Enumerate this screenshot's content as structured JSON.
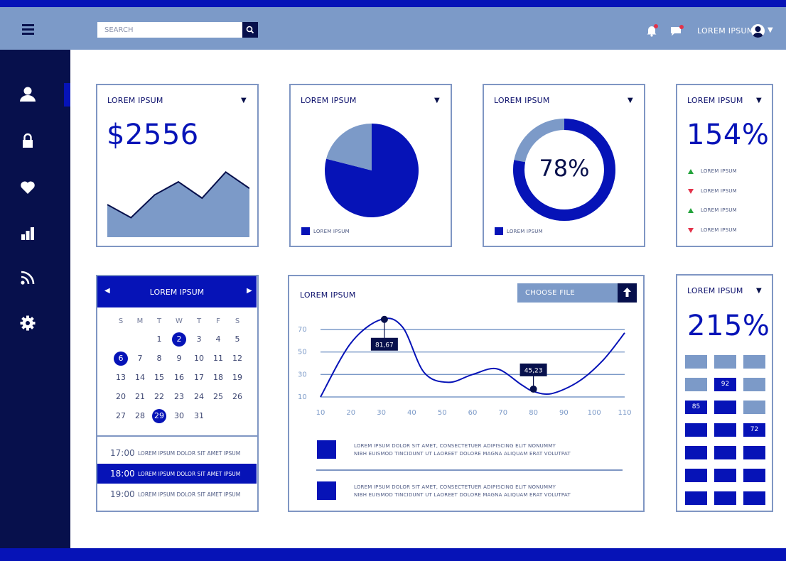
{
  "header": {
    "search_placeholder": "SEARCH",
    "user_name": "LOREM IPSUM"
  },
  "colors": {
    "primary": "#0613b7",
    "light": "#7c9ac8",
    "dark": "#07104c",
    "up": "#23a33b",
    "down": "#e3324a"
  },
  "sidebar": {
    "items": [
      "user-icon",
      "lock-icon",
      "heart-icon",
      "bar-chart-icon",
      "rss-icon",
      "gear-icon"
    ]
  },
  "card_revenue": {
    "title": "LOREM IPSUM",
    "value": "$2556",
    "chart_data": {
      "type": "area",
      "values": [
        10,
        6,
        13,
        17,
        12,
        20,
        15
      ]
    }
  },
  "card_pie": {
    "title": "LOREM IPSUM",
    "legend": "LOREM IPSUM",
    "chart_data": {
      "type": "pie",
      "values": [
        0.79,
        0.21
      ]
    }
  },
  "card_donut": {
    "title": "LOREM IPSUM",
    "value": "78%",
    "legend": "LOREM IPSUM",
    "chart_data": {
      "type": "pie",
      "values": [
        0.78,
        0.22
      ]
    }
  },
  "card_percent": {
    "title": "LOREM IPSUM",
    "value": "154%",
    "items": [
      {
        "direction": "up",
        "label": "LOREM IPSUM"
      },
      {
        "direction": "down",
        "label": "LOREM IPSUM"
      },
      {
        "direction": "up",
        "label": "LOREM IPSUM"
      },
      {
        "direction": "down",
        "label": "LOREM IPSUM"
      }
    ]
  },
  "calendar": {
    "title": "LOREM IPSUM",
    "prev": "◀",
    "next": "▶",
    "weekdays": [
      "S",
      "M",
      "T",
      "W",
      "T",
      "F",
      "S"
    ],
    "weeks": [
      [
        "",
        "",
        "1",
        "2",
        "3",
        "4",
        "5"
      ],
      [
        "6",
        "7",
        "8",
        "9",
        "10",
        "11",
        "12"
      ],
      [
        "13",
        "14",
        "15",
        "16",
        "17",
        "18",
        "19"
      ],
      [
        "20",
        "21",
        "22",
        "23",
        "24",
        "25",
        "26"
      ],
      [
        "27",
        "28",
        "29",
        "30",
        "31",
        "",
        ""
      ]
    ],
    "selected": [
      "2",
      "6",
      "29"
    ],
    "events": [
      {
        "time": "17:00",
        "text": "LOREM IPSUM DOLOR SIT AMET IPSUM",
        "active": false
      },
      {
        "time": "18:00",
        "text": "LOREM IPSUM DOLOR SIT AMET IPSUM",
        "active": true
      },
      {
        "time": "19:00",
        "text": "LOREM IPSUM DOLOR SIT AMET IPSUM",
        "active": false
      }
    ]
  },
  "line_card": {
    "title": "LOREM IPSUM",
    "choose_file": "CHOOSE FILE",
    "chart_data": {
      "type": "line",
      "x_ticks": [
        "10",
        "20",
        "30",
        "40",
        "50",
        "60",
        "70",
        "80",
        "90",
        "100",
        "110"
      ],
      "y_ticks": [
        "70",
        "50",
        "30",
        "10"
      ],
      "x": [
        10,
        20,
        30,
        37,
        44,
        52,
        60,
        68,
        76,
        80,
        86,
        95,
        103,
        110
      ],
      "y": [
        10,
        58,
        79,
        72,
        32,
        23,
        30,
        35,
        21,
        15,
        13,
        24,
        43,
        67
      ],
      "annotations": [
        {
          "label": "81,67",
          "x": 31,
          "y": 79
        },
        {
          "label": "45,23",
          "x": 80,
          "y": 17
        }
      ]
    },
    "notes": [
      {
        "line1": "LOREM IPSUM DOLOR SIT AMET, CONSECTETUER ADIPISCING ELIT NONUMMY",
        "line2": "NIBH EUISMOD TINCIDUNT UT LAOREET DOLORE MAGNA ALIQUAM ERAT VOLUTPAT"
      },
      {
        "line1": "LOREM IPSUM DOLOR SIT AMET, CONSECTETUER ADIPISCING ELIT NONUMMY",
        "line2": "NIBH EUISMOD TINCIDUNT UT LAOREET DOLORE MAGNA ALIQUAM ERAT VOLUTPAT"
      }
    ]
  },
  "grid_card": {
    "title": "LOREM IPSUM",
    "value": "215%",
    "cells": [
      [
        "light",
        "light",
        "light"
      ],
      [
        "light",
        "dark:92",
        "light"
      ],
      [
        "dark:85",
        "dark",
        "light"
      ],
      [
        "dark",
        "dark",
        "dark:72"
      ],
      [
        "dark",
        "dark",
        "dark"
      ],
      [
        "dark",
        "dark",
        "dark"
      ],
      [
        "dark",
        "dark",
        "dark"
      ]
    ]
  }
}
